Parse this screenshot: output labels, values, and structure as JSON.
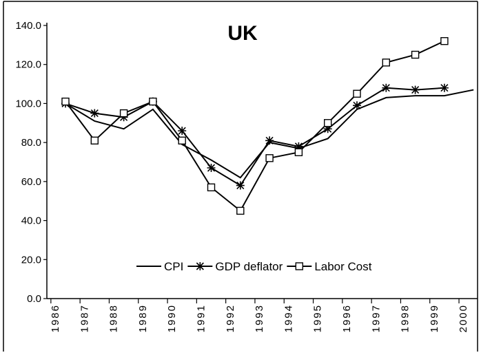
{
  "chart_data": {
    "type": "line",
    "title": "UK",
    "categories": [
      "1986",
      "1987",
      "1988",
      "1989",
      "1990",
      "1991",
      "1992",
      "1993",
      "1994",
      "1995",
      "1996",
      "1997",
      "1998",
      "1999",
      "2000"
    ],
    "series": [
      {
        "name": "CPI",
        "color": "#000000",
        "marker": "none",
        "values": [
          100,
          91,
          87,
          97,
          79,
          71,
          62,
          80,
          77,
          82,
          97,
          103,
          104,
          104,
          107
        ]
      },
      {
        "name": "GDP deflator",
        "color": "#000000",
        "marker": "asterisk",
        "values": [
          100,
          95,
          93,
          101,
          86,
          67,
          58,
          81,
          78,
          87,
          99,
          108,
          107,
          108,
          null
        ]
      },
      {
        "name": "Labor Cost",
        "color": "#000000",
        "marker": "square",
        "values": [
          101,
          81,
          95,
          101,
          81,
          57,
          45,
          72,
          75,
          90,
          105,
          121,
          125,
          132,
          null
        ]
      }
    ],
    "ylim": [
      0,
      140
    ],
    "yticks": [
      {
        "value": 0,
        "label": "0.0"
      },
      {
        "value": 20,
        "label": "20.0"
      },
      {
        "value": 40,
        "label": "40.0"
      },
      {
        "value": 60,
        "label": "60.0"
      },
      {
        "value": 80,
        "label": "80.0"
      },
      {
        "value": 100,
        "label": "100.0"
      },
      {
        "value": 120,
        "label": "120.0"
      },
      {
        "value": 140,
        "label": "140.0"
      }
    ],
    "grid": false
  }
}
